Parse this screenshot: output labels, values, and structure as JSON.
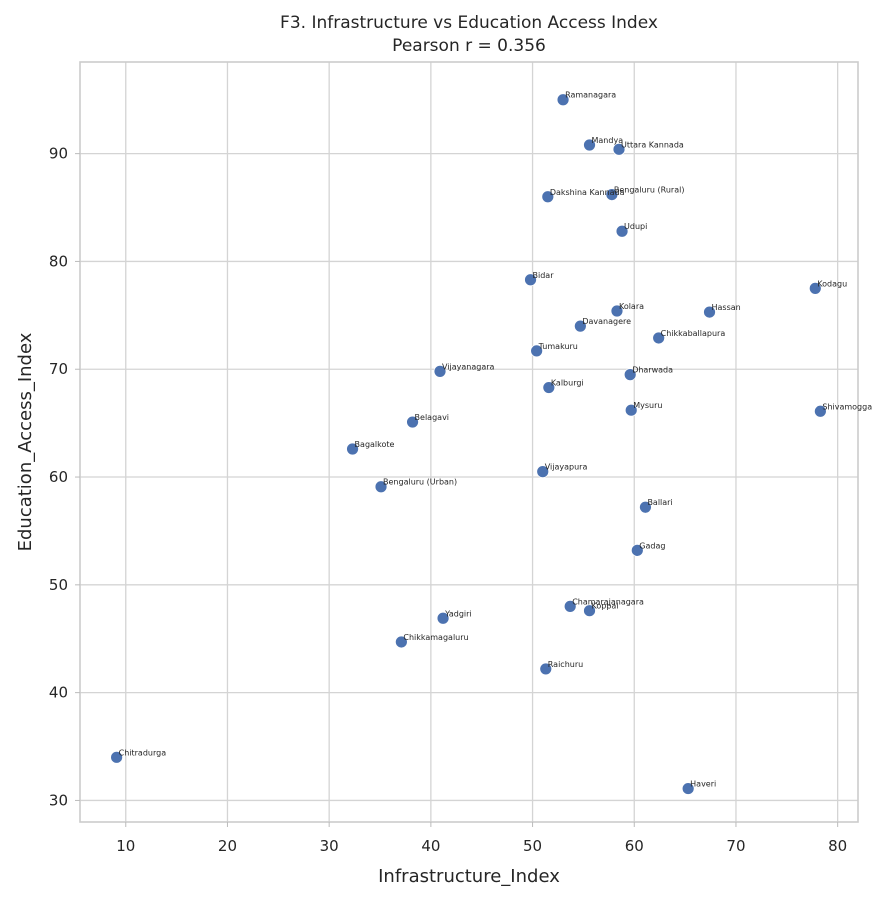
{
  "chart_data": {
    "type": "scatter",
    "title": "F3. Infrastructure vs Education Access Index",
    "subtitle": "Pearson r = 0.356",
    "xlabel": "Infrastructure_Index",
    "ylabel": "Education_Access_Index",
    "xlim": [
      5.5,
      82
    ],
    "ylim": [
      28,
      98.5
    ],
    "xticks": [
      10,
      20,
      30,
      40,
      50,
      60,
      70,
      80
    ],
    "yticks": [
      30,
      40,
      50,
      60,
      70,
      80,
      90
    ],
    "grid": true,
    "color": "#4c72b0",
    "points": [
      {
        "label": "Ramanagara",
        "x": 53.0,
        "y": 95.0
      },
      {
        "label": "Mandya",
        "x": 55.6,
        "y": 90.8
      },
      {
        "label": "Uttara Kannada",
        "x": 58.5,
        "y": 90.4
      },
      {
        "label": "Bengaluru (Rural)",
        "x": 57.8,
        "y": 86.2
      },
      {
        "label": "Dakshina Kannada",
        "x": 51.5,
        "y": 86.0
      },
      {
        "label": "Udupi",
        "x": 58.8,
        "y": 82.8
      },
      {
        "label": "Bidar",
        "x": 49.8,
        "y": 78.3
      },
      {
        "label": "Kodagu",
        "x": 77.8,
        "y": 77.5
      },
      {
        "label": "Kolara",
        "x": 58.3,
        "y": 75.4
      },
      {
        "label": "Hassan",
        "x": 67.4,
        "y": 75.3
      },
      {
        "label": "Davanagere",
        "x": 54.7,
        "y": 74.0
      },
      {
        "label": "Chikkaballapura",
        "x": 62.4,
        "y": 72.9
      },
      {
        "label": "Tumakuru",
        "x": 50.4,
        "y": 71.7
      },
      {
        "label": "Vijayanagara",
        "x": 40.9,
        "y": 69.8
      },
      {
        "label": "Dharwada",
        "x": 59.6,
        "y": 69.5
      },
      {
        "label": "Kalburgi",
        "x": 51.6,
        "y": 68.3
      },
      {
        "label": "Mysuru",
        "x": 59.7,
        "y": 66.2
      },
      {
        "label": "Shivamogga",
        "x": 78.3,
        "y": 66.1
      },
      {
        "label": "Belagavi",
        "x": 38.2,
        "y": 65.1
      },
      {
        "label": "Bagalkote",
        "x": 32.3,
        "y": 62.6
      },
      {
        "label": "Vijayapura",
        "x": 51.0,
        "y": 60.5
      },
      {
        "label": "Bengaluru (Urban)",
        "x": 35.1,
        "y": 59.1
      },
      {
        "label": "Ballari",
        "x": 61.1,
        "y": 57.2
      },
      {
        "label": "Gadag",
        "x": 60.3,
        "y": 53.2
      },
      {
        "label": "Chamarajanagara",
        "x": 53.7,
        "y": 48.0
      },
      {
        "label": "Koppal",
        "x": 55.6,
        "y": 47.6
      },
      {
        "label": "Yadgiri",
        "x": 41.2,
        "y": 46.9
      },
      {
        "label": "Chikkamagaluru",
        "x": 37.1,
        "y": 44.7
      },
      {
        "label": "Raichuru",
        "x": 51.3,
        "y": 42.2
      },
      {
        "label": "Chitradurga",
        "x": 9.1,
        "y": 34.0
      },
      {
        "label": "Haveri",
        "x": 65.3,
        "y": 31.1
      }
    ]
  }
}
